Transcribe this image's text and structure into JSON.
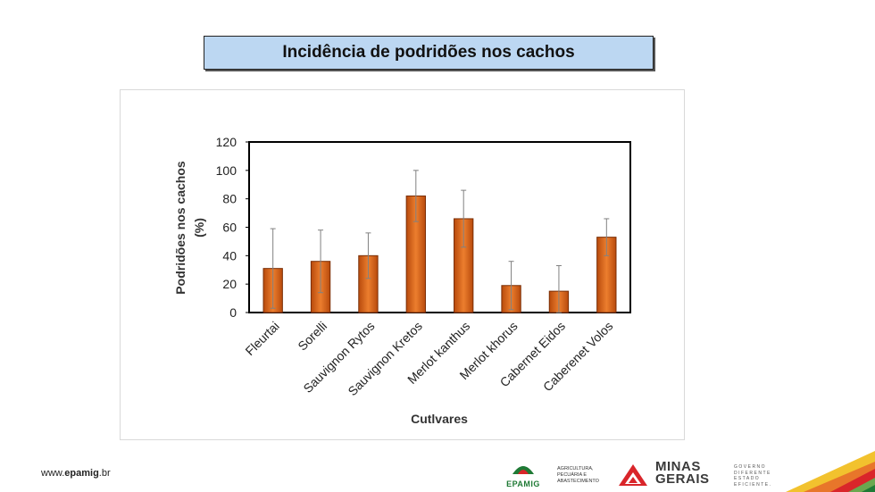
{
  "slide": {
    "title": "Incidência de podridões nos cachos",
    "footer_url_prefix": "www.",
    "footer_url_bold": "epamig",
    "footer_url_suffix": ".br"
  },
  "logos": {
    "epamig": "EPAMIG",
    "agri_line1": "Agricultura,",
    "agri_line2": "Pecuária e",
    "agri_line3": "Abastecimento",
    "mg_line1": "MINAS",
    "mg_line2": "GERAIS",
    "mg_sub1": "GOVERNO",
    "mg_sub2": "DIFERENTE",
    "mg_sub3": "ESTADO",
    "mg_sub4": "EFICIENTE."
  },
  "colors": {
    "bar": "#c8560f",
    "bar_light": "#e77a2c",
    "title_bg": "#bcd7f2",
    "error_bar": "#808080",
    "epamig_green": "#1f7a35",
    "mg_red": "#d9252a"
  },
  "chart_data": {
    "type": "bar",
    "title": "",
    "xlabel": "Cutlvares",
    "ylabel_line1": "Podridões nos cachos",
    "ylabel_line2": "(%)",
    "ylim": [
      0,
      120
    ],
    "yticks": [
      0,
      20,
      40,
      60,
      80,
      100,
      120
    ],
    "categories": [
      "Fleurtai",
      "Sorelli",
      "Sauvignon Rytos",
      "Sauvignon Kretos",
      "Merlot kanthus",
      "Merlot khorus",
      "Cabernet Eidos",
      "Caberenet Volos"
    ],
    "values": [
      31,
      36,
      40,
      82,
      66,
      19,
      15,
      53
    ],
    "error": [
      28,
      22,
      16,
      18,
      20,
      17,
      18,
      13
    ],
    "grid": false
  }
}
